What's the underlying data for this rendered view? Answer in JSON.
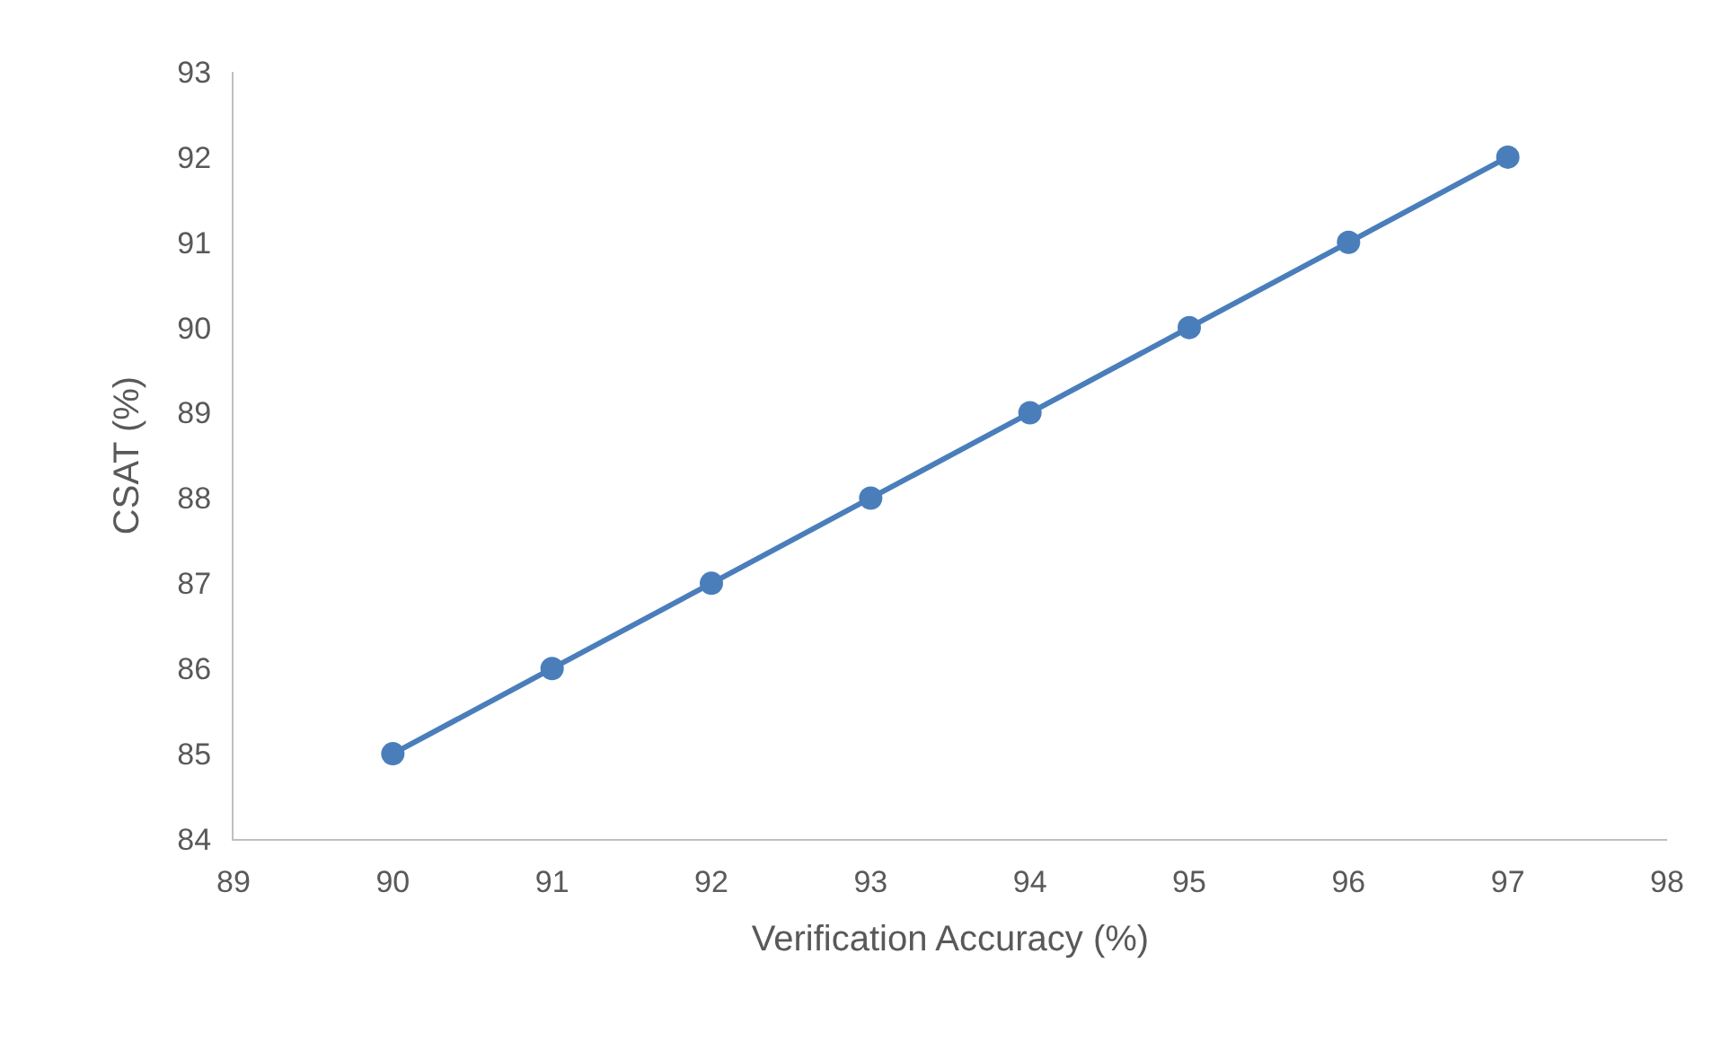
{
  "chart_data": {
    "type": "line",
    "xlabel": "Verification Accuracy (%)",
    "ylabel": "CSAT (%)",
    "x": [
      90,
      91,
      92,
      93,
      94,
      95,
      96,
      97
    ],
    "series": [
      {
        "color": "#4a7ebb",
        "values": [
          85,
          86,
          87,
          88,
          89,
          90,
          91,
          92
        ]
      }
    ],
    "xlim": [
      89,
      98
    ],
    "xticks": [
      89,
      90,
      91,
      92,
      93,
      94,
      95,
      96,
      97,
      98
    ],
    "ylim": [
      84,
      93
    ],
    "yticks": [
      84,
      85,
      86,
      87,
      88,
      89,
      90,
      91,
      92,
      93
    ],
    "marker": "circle",
    "line_style": "solid"
  }
}
